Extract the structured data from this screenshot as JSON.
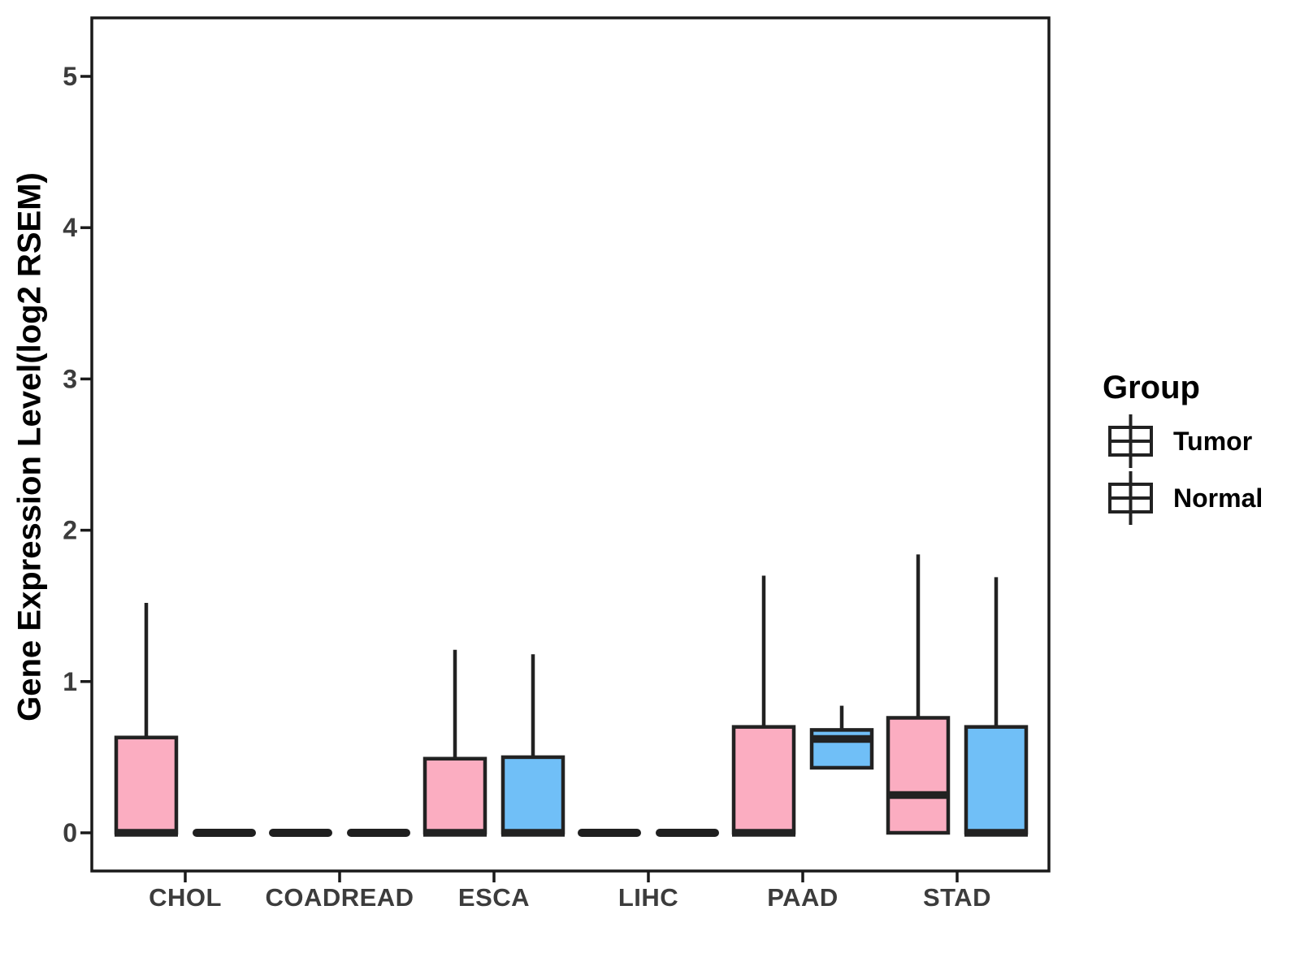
{
  "chart_data": {
    "type": "boxplot",
    "title": "",
    "xlabel": "",
    "ylabel": "Gene Expression Level(log2 RSEM)",
    "categories": [
      "CHOL",
      "COADREAD",
      "ESCA",
      "LIHC",
      "PAAD",
      "STAD"
    ],
    "ylim": [
      0,
      5
    ],
    "yticks": [
      0,
      1,
      2,
      3,
      4,
      5
    ],
    "grid": false,
    "legend": {
      "title": "Group",
      "position": "right"
    },
    "series": [
      {
        "name": "Tumor",
        "color": "#FBADC1",
        "boxes": [
          {
            "category": "CHOL",
            "min": 0,
            "q1": 0,
            "median": 0,
            "q3": 0.63,
            "max": 1.52
          },
          {
            "category": "COADREAD",
            "min": 0,
            "q1": 0,
            "median": 0,
            "q3": 0,
            "max": 0
          },
          {
            "category": "ESCA",
            "min": 0,
            "q1": 0,
            "median": 0,
            "q3": 0.49,
            "max": 1.21
          },
          {
            "category": "LIHC",
            "min": 0,
            "q1": 0,
            "median": 0,
            "q3": 0,
            "max": 0
          },
          {
            "category": "PAAD",
            "min": 0,
            "q1": 0,
            "median": 0,
            "q3": 0.7,
            "max": 1.7
          },
          {
            "category": "STAD",
            "min": 0,
            "q1": 0,
            "median": 0.25,
            "q3": 0.76,
            "max": 1.84
          }
        ]
      },
      {
        "name": "Normal",
        "color": "#70BFF7",
        "boxes": [
          {
            "category": "CHOL",
            "min": 0,
            "q1": 0,
            "median": 0,
            "q3": 0,
            "max": 0
          },
          {
            "category": "COADREAD",
            "min": 0,
            "q1": 0,
            "median": 0,
            "q3": 0,
            "max": 0
          },
          {
            "category": "ESCA",
            "min": 0,
            "q1": 0,
            "median": 0,
            "q3": 0.5,
            "max": 1.18
          },
          {
            "category": "LIHC",
            "min": 0,
            "q1": 0,
            "median": 0,
            "q3": 0,
            "max": 0
          },
          {
            "category": "PAAD",
            "min": 0.43,
            "q1": 0.43,
            "median": 0.62,
            "q3": 0.68,
            "max": 0.84
          },
          {
            "category": "STAD",
            "min": 0,
            "q1": 0,
            "median": 0,
            "q3": 0.7,
            "max": 1.69
          }
        ]
      }
    ],
    "colors": {
      "box_outline": "#222222",
      "panel_border": "#1A1A1A",
      "tick_label": "#3C3C3C",
      "axis_title": "#000000",
      "flat_box": "#1F1F1F",
      "background": "#FFFFFF"
    }
  }
}
